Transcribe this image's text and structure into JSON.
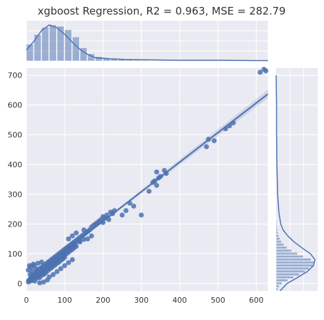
{
  "chart_data": {
    "type": "scatter",
    "title": "xgboost Regression, R2 = 0.963, MSE = 282.79",
    "xlabel": "",
    "ylabel": "",
    "xlim": [
      0,
      630
    ],
    "ylim": [
      -25,
      725
    ],
    "x_ticks": [
      0,
      100,
      200,
      300,
      400,
      500,
      600
    ],
    "y_ticks": [
      0,
      100,
      200,
      300,
      400,
      500,
      600,
      700
    ],
    "grid": true,
    "colors": {
      "points": "#4c72b0",
      "line": "#4c72b0",
      "background": "#eaeaf2",
      "grid": "#ffffff"
    },
    "regression": {
      "slope": 0.995,
      "intercept": 10,
      "ci_halfwidth_at_max": 12
    },
    "points": [
      [
        5,
        5
      ],
      [
        8,
        12
      ],
      [
        10,
        8
      ],
      [
        12,
        20
      ],
      [
        15,
        10
      ],
      [
        15,
        25
      ],
      [
        18,
        15
      ],
      [
        20,
        30
      ],
      [
        20,
        18
      ],
      [
        22,
        8
      ],
      [
        25,
        35
      ],
      [
        25,
        22
      ],
      [
        28,
        40
      ],
      [
        28,
        18
      ],
      [
        30,
        30
      ],
      [
        30,
        45
      ],
      [
        32,
        25
      ],
      [
        35,
        50
      ],
      [
        35,
        38
      ],
      [
        35,
        20
      ],
      [
        38,
        42
      ],
      [
        40,
        55
      ],
      [
        40,
        35
      ],
      [
        40,
        28
      ],
      [
        42,
        48
      ],
      [
        45,
        60
      ],
      [
        45,
        40
      ],
      [
        45,
        30
      ],
      [
        48,
        52
      ],
      [
        50,
        65
      ],
      [
        50,
        45
      ],
      [
        50,
        35
      ],
      [
        52,
        58
      ],
      [
        55,
        70
      ],
      [
        55,
        50
      ],
      [
        55,
        42
      ],
      [
        58,
        62
      ],
      [
        60,
        75
      ],
      [
        60,
        55
      ],
      [
        60,
        48
      ],
      [
        62,
        68
      ],
      [
        65,
        80
      ],
      [
        65,
        60
      ],
      [
        65,
        52
      ],
      [
        68,
        72
      ],
      [
        70,
        85
      ],
      [
        70,
        65
      ],
      [
        70,
        58
      ],
      [
        72,
        78
      ],
      [
        75,
        90
      ],
      [
        75,
        70
      ],
      [
        75,
        62
      ],
      [
        78,
        82
      ],
      [
        80,
        95
      ],
      [
        80,
        75
      ],
      [
        80,
        68
      ],
      [
        82,
        88
      ],
      [
        85,
        100
      ],
      [
        85,
        80
      ],
      [
        85,
        72
      ],
      [
        88,
        92
      ],
      [
        90,
        105
      ],
      [
        90,
        85
      ],
      [
        90,
        78
      ],
      [
        92,
        98
      ],
      [
        95,
        110
      ],
      [
        95,
        90
      ],
      [
        95,
        82
      ],
      [
        98,
        102
      ],
      [
        100,
        115
      ],
      [
        100,
        95
      ],
      [
        100,
        88
      ],
      [
        102,
        108
      ],
      [
        105,
        120
      ],
      [
        105,
        100
      ],
      [
        108,
        112
      ],
      [
        110,
        125
      ],
      [
        110,
        105
      ],
      [
        112,
        118
      ],
      [
        115,
        130
      ],
      [
        115,
        110
      ],
      [
        118,
        122
      ],
      [
        120,
        135
      ],
      [
        120,
        115
      ],
      [
        122,
        128
      ],
      [
        125,
        140
      ],
      [
        125,
        120
      ],
      [
        128,
        132
      ],
      [
        130,
        145
      ],
      [
        130,
        125
      ],
      [
        135,
        150
      ],
      [
        138,
        142
      ],
      [
        140,
        155
      ],
      [
        145,
        160
      ],
      [
        150,
        165
      ],
      [
        150,
        148
      ],
      [
        155,
        170
      ],
      [
        160,
        175
      ],
      [
        165,
        180
      ],
      [
        170,
        190
      ],
      [
        175,
        195
      ],
      [
        180,
        200
      ],
      [
        185,
        205
      ],
      [
        190,
        210
      ],
      [
        195,
        215
      ],
      [
        200,
        225
      ],
      [
        200,
        205
      ],
      [
        205,
        220
      ],
      [
        210,
        230
      ],
      [
        215,
        215
      ],
      [
        220,
        240
      ],
      [
        225,
        235
      ],
      [
        230,
        245
      ],
      [
        110,
        150
      ],
      [
        120,
        160
      ],
      [
        130,
        170
      ],
      [
        140,
        140
      ],
      [
        150,
        180
      ],
      [
        160,
        150
      ],
      [
        170,
        160
      ],
      [
        12,
        55
      ],
      [
        20,
        60
      ],
      [
        30,
        68
      ],
      [
        40,
        72
      ],
      [
        25,
        50
      ],
      [
        15,
        42
      ],
      [
        10,
        30
      ],
      [
        5,
        45
      ],
      [
        8,
        60
      ],
      [
        18,
        65
      ],
      [
        35,
        2
      ],
      [
        45,
        5
      ],
      [
        55,
        12
      ],
      [
        60,
        22
      ],
      [
        70,
        30
      ],
      [
        80,
        40
      ],
      [
        90,
        50
      ],
      [
        100,
        60
      ],
      [
        110,
        70
      ],
      [
        120,
        80
      ],
      [
        250,
        230
      ],
      [
        260,
        245
      ],
      [
        270,
        270
      ],
      [
        280,
        260
      ],
      [
        300,
        230
      ],
      [
        320,
        310
      ],
      [
        330,
        340
      ],
      [
        335,
        345
      ],
      [
        340,
        330
      ],
      [
        345,
        355
      ],
      [
        340,
        375
      ],
      [
        350,
        360
      ],
      [
        360,
        380
      ],
      [
        365,
        370
      ],
      [
        470,
        460
      ],
      [
        475,
        485
      ],
      [
        490,
        480
      ],
      [
        520,
        520
      ],
      [
        540,
        540
      ],
      [
        530,
        530
      ],
      [
        610,
        710
      ],
      [
        620,
        720
      ],
      [
        625,
        715
      ]
    ],
    "x_hist": {
      "bin_start": 0,
      "bin_width": 20,
      "counts": [
        70,
        110,
        140,
        150,
        145,
        130,
        100,
        55,
        30,
        18,
        12,
        10,
        8,
        6,
        4,
        3
      ]
    },
    "y_hist": {
      "bin_start": -25,
      "bin_width": 10,
      "counts": [
        5,
        8,
        15,
        30,
        45,
        60,
        75,
        85,
        95,
        100,
        90,
        70,
        55,
        40,
        28,
        20,
        14,
        10,
        7,
        5,
        4,
        3,
        2,
        2,
        1,
        1,
        1
      ]
    },
    "x_kde": [
      [
        0,
        0.3
      ],
      [
        20,
        0.55
      ],
      [
        40,
        0.85
      ],
      [
        60,
        1.0
      ],
      [
        80,
        0.92
      ],
      [
        100,
        0.74
      ],
      [
        120,
        0.52
      ],
      [
        140,
        0.32
      ],
      [
        160,
        0.18
      ],
      [
        180,
        0.09
      ],
      [
        220,
        0.06
      ],
      [
        260,
        0.04
      ],
      [
        320,
        0.03
      ],
      [
        400,
        0.02
      ],
      [
        500,
        0.02
      ],
      [
        600,
        0.01
      ],
      [
        630,
        0.01
      ]
    ],
    "y_kde": [
      [
        -25,
        0.1
      ],
      [
        0,
        0.28
      ],
      [
        20,
        0.55
      ],
      [
        40,
        0.8
      ],
      [
        60,
        0.96
      ],
      [
        80,
        1.0
      ],
      [
        100,
        0.88
      ],
      [
        120,
        0.66
      ],
      [
        140,
        0.46
      ],
      [
        160,
        0.3
      ],
      [
        180,
        0.18
      ],
      [
        200,
        0.12
      ],
      [
        240,
        0.07
      ],
      [
        300,
        0.04
      ],
      [
        400,
        0.02
      ],
      [
        500,
        0.01
      ],
      [
        600,
        0.01
      ],
      [
        700,
        0.0
      ]
    ]
  }
}
